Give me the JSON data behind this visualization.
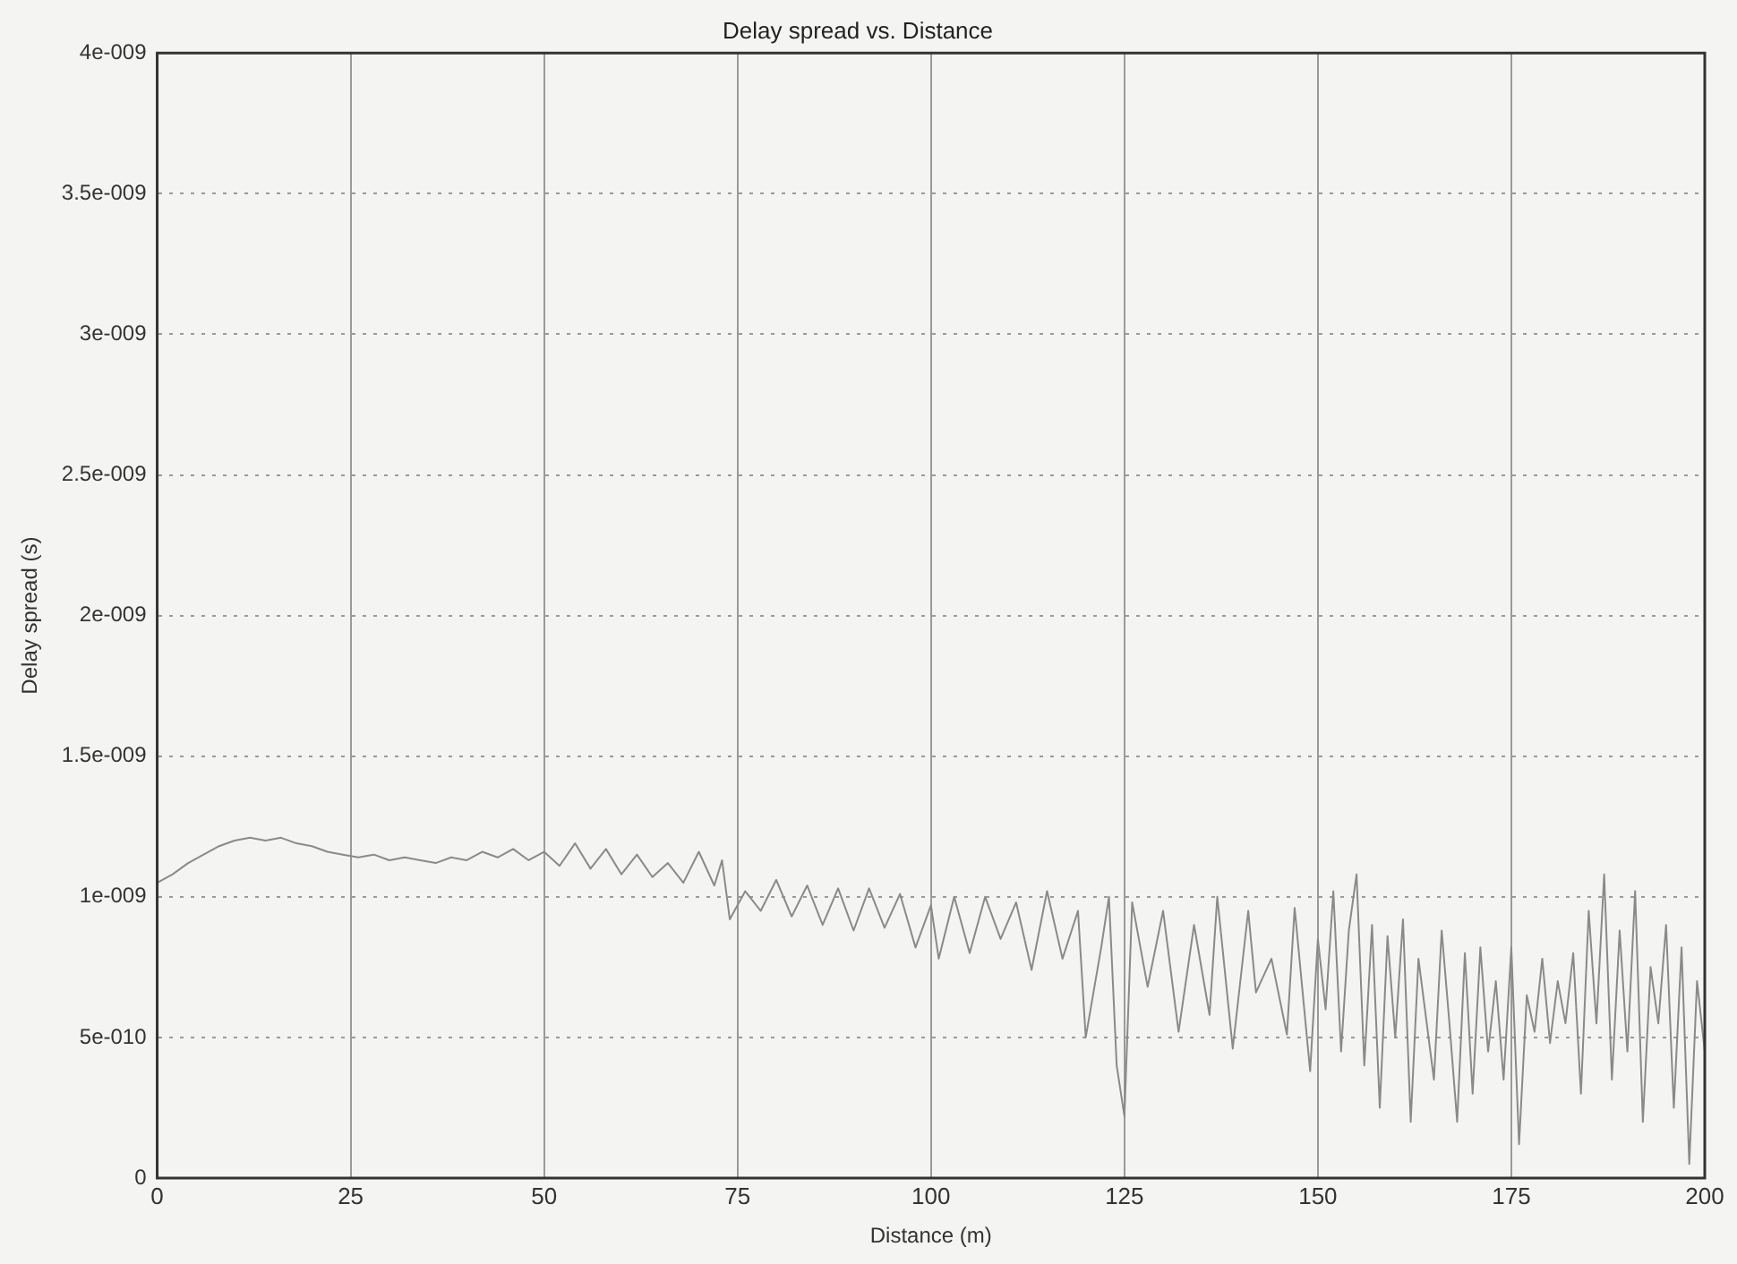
{
  "chart_data": {
    "type": "line",
    "title": "Delay spread vs. Distance",
    "xlabel": "Distance (m)",
    "ylabel": "Delay spread (s)",
    "xlim": [
      0,
      200
    ],
    "xticks": [
      0,
      25,
      50,
      75,
      100,
      125,
      150,
      175,
      200
    ],
    "ylim": [
      0,
      4e-09
    ],
    "yticks": [
      {
        "value": 0,
        "label": "0"
      },
      {
        "value": 5e-10,
        "label": "5e-010"
      },
      {
        "value": 1e-09,
        "label": "1e-009"
      },
      {
        "value": 1.5e-09,
        "label": "1.5e-009"
      },
      {
        "value": 2e-09,
        "label": "2e-009"
      },
      {
        "value": 2.5e-09,
        "label": "2.5e-009"
      },
      {
        "value": 3e-09,
        "label": "3e-009"
      },
      {
        "value": 3.5e-09,
        "label": "3.5e-009"
      },
      {
        "value": 4e-09,
        "label": "4e-009"
      }
    ],
    "grid": true,
    "legend": false,
    "marker": "none",
    "line_style": "solid",
    "series": [
      {
        "color": "#8a8a8a",
        "x": [
          0,
          2,
          4,
          6,
          8,
          10,
          12,
          14,
          16,
          18,
          20,
          22,
          24,
          26,
          28,
          30,
          32,
          34,
          36,
          38,
          40,
          42,
          44,
          46,
          48,
          50,
          52,
          54,
          56,
          58,
          60,
          62,
          64,
          66,
          68,
          70,
          72,
          73,
          74,
          76,
          78,
          80,
          82,
          84,
          86,
          88,
          90,
          92,
          94,
          96,
          98,
          100,
          101,
          103,
          105,
          107,
          109,
          111,
          113,
          115,
          117,
          119,
          120,
          122,
          123,
          124,
          125,
          126,
          128,
          130,
          132,
          134,
          136,
          137,
          139,
          141,
          142,
          144,
          146,
          147,
          149,
          150,
          151,
          152,
          153,
          154,
          155,
          156,
          157,
          158,
          159,
          160,
          161,
          162,
          163,
          165,
          166,
          167,
          168,
          169,
          170,
          171,
          172,
          173,
          174,
          175,
          176,
          177,
          178,
          179,
          180,
          181,
          182,
          183,
          184,
          185,
          186,
          187,
          188,
          189,
          190,
          191,
          192,
          193,
          194,
          195,
          196,
          197,
          198,
          199,
          200
        ],
        "values": [
          1.05e-09,
          1.08e-09,
          1.12e-09,
          1.15e-09,
          1.18e-09,
          1.2e-09,
          1.21e-09,
          1.2e-09,
          1.21e-09,
          1.19e-09,
          1.18e-09,
          1.16e-09,
          1.15e-09,
          1.14e-09,
          1.15e-09,
          1.13e-09,
          1.14e-09,
          1.13e-09,
          1.12e-09,
          1.14e-09,
          1.13e-09,
          1.16e-09,
          1.14e-09,
          1.17e-09,
          1.13e-09,
          1.16e-09,
          1.11e-09,
          1.19e-09,
          1.1e-09,
          1.17e-09,
          1.08e-09,
          1.15e-09,
          1.07e-09,
          1.12e-09,
          1.05e-09,
          1.16e-09,
          1.04e-09,
          1.13e-09,
          9.2e-10,
          1.02e-09,
          9.5e-10,
          1.06e-09,
          9.3e-10,
          1.04e-09,
          9e-10,
          1.03e-09,
          8.8e-10,
          1.03e-09,
          8.9e-10,
          1.01e-09,
          8.2e-10,
          9.7e-10,
          7.8e-10,
          1e-09,
          8e-10,
          1e-09,
          8.5e-10,
          9.8e-10,
          7.4e-10,
          1.02e-09,
          7.8e-10,
          9.5e-10,
          5e-10,
          8.2e-10,
          1e-09,
          4e-10,
          2.2e-10,
          9.8e-10,
          6.8e-10,
          9.5e-10,
          5.2e-10,
          9e-10,
          5.8e-10,
          1e-09,
          4.6e-10,
          9.5e-10,
          6.6e-10,
          7.8e-10,
          5.1e-10,
          9.6e-10,
          3.8e-10,
          8.5e-10,
          6e-10,
          1.02e-09,
          4.5e-10,
          8.8e-10,
          1.08e-09,
          4e-10,
          9e-10,
          2.5e-10,
          8.6e-10,
          5e-10,
          9.2e-10,
          2e-10,
          7.8e-10,
          3.5e-10,
          8.8e-10,
          5.5e-10,
          2e-10,
          8e-10,
          3e-10,
          8.2e-10,
          4.5e-10,
          7e-10,
          3.5e-10,
          8.2e-10,
          1.2e-10,
          6.5e-10,
          5.2e-10,
          7.8e-10,
          4.8e-10,
          7e-10,
          5.5e-10,
          8e-10,
          3e-10,
          9.5e-10,
          5.5e-10,
          1.08e-09,
          3.5e-10,
          8.8e-10,
          4.5e-10,
          1.02e-09,
          2e-10,
          7.5e-10,
          5.5e-10,
          9e-10,
          2.5e-10,
          8.2e-10,
          5e-11,
          7e-10,
          4.5e-10
        ]
      }
    ]
  }
}
